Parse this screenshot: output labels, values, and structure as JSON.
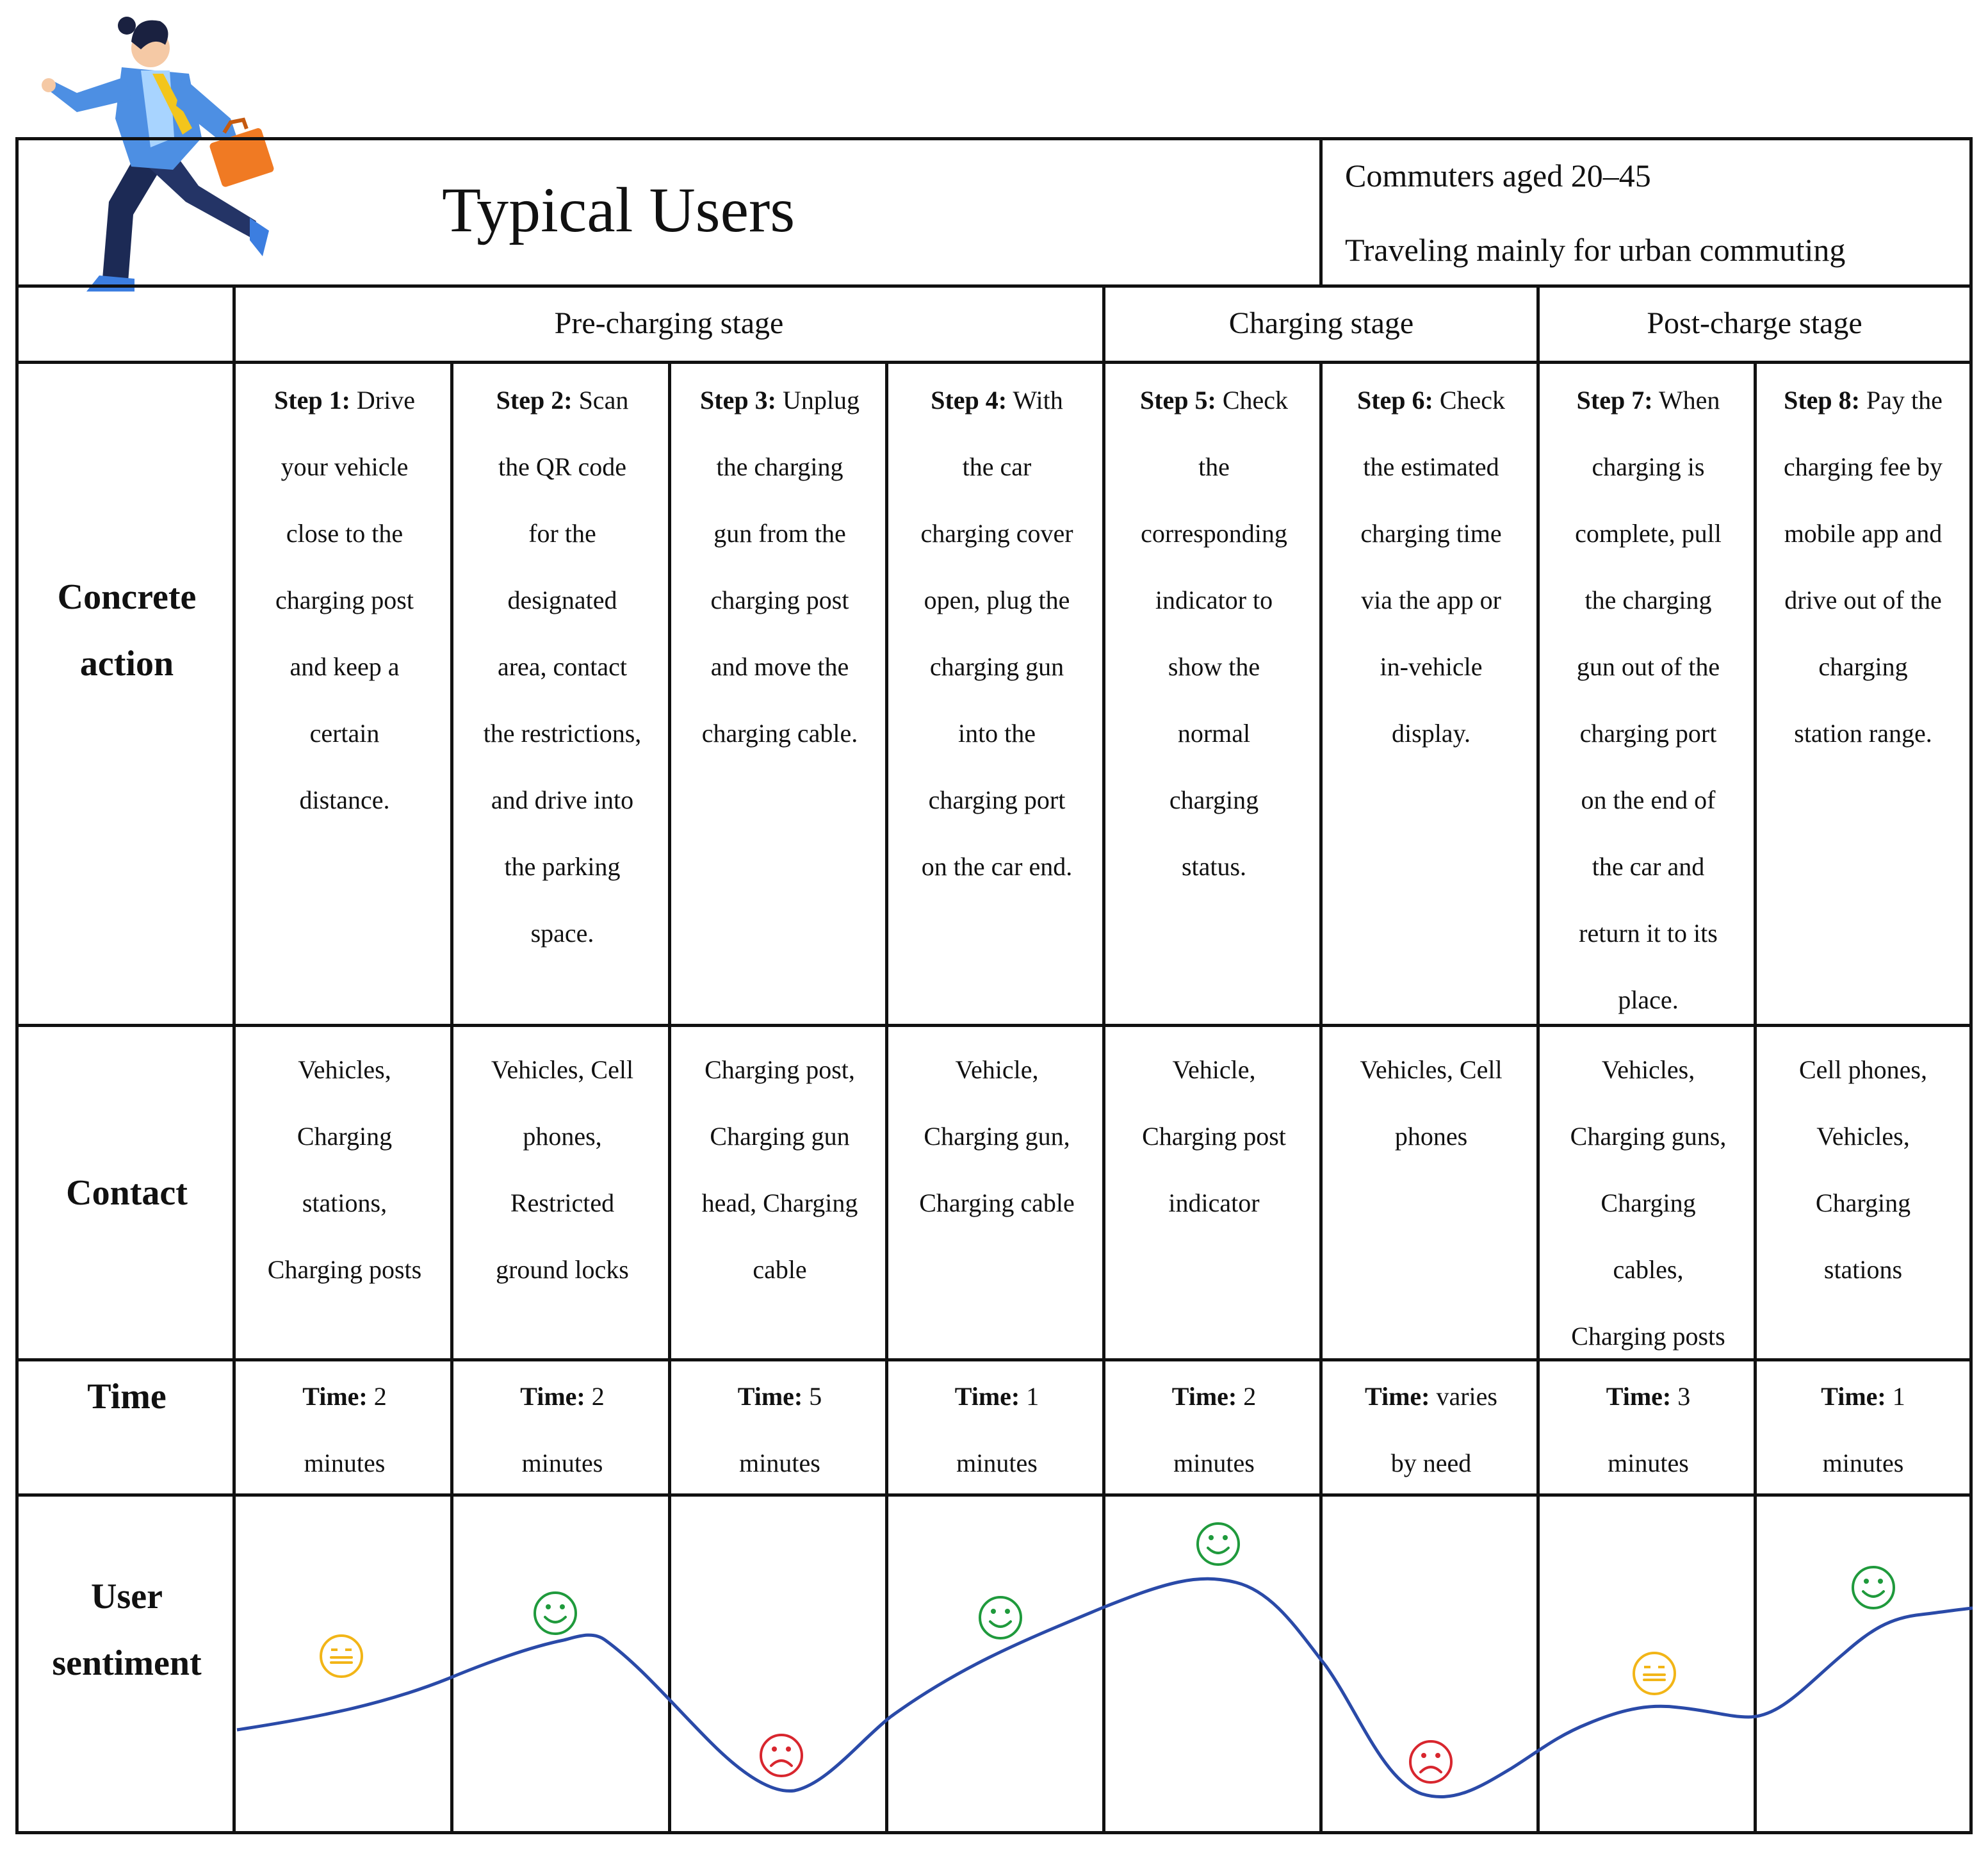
{
  "header": {
    "title": "Typical Users",
    "meta_lines": [
      "Commuters aged 20–45",
      "Traveling mainly for urban commuting"
    ]
  },
  "stages": [
    {
      "label": "Pre-charging stage"
    },
    {
      "label": "Charging stage"
    },
    {
      "label": "Post-charge stage"
    }
  ],
  "rows": {
    "action_label": [
      "Concrete",
      "action"
    ],
    "contact_label": "Contact",
    "time_label": "Time",
    "sentiment_label": [
      "User",
      "sentiment"
    ]
  },
  "steps": [
    {
      "step": "Step 1:",
      "action": [
        "Drive",
        "your vehicle",
        "close to the",
        "charging post",
        "and keep a",
        "certain",
        "distance."
      ],
      "contact": [
        "Vehicles,",
        "Charging",
        "stations,",
        "Charging posts"
      ],
      "time_key": "Time:",
      "time_val": [
        "2",
        "minutes"
      ],
      "sentiment": "neutral"
    },
    {
      "step": "Step 2:",
      "action": [
        "Scan",
        "the QR code",
        "for the",
        "designated",
        "area, contact",
        "the restrictions,",
        "and drive into",
        "the parking",
        "space."
      ],
      "contact": [
        "Vehicles, Cell",
        "phones,",
        "Restricted",
        "ground locks"
      ],
      "time_key": "Time:",
      "time_val": [
        "2",
        "minutes"
      ],
      "sentiment": "happy"
    },
    {
      "step": "Step 3:",
      "action": [
        "Unplug",
        "the charging",
        "gun from the",
        "charging post",
        "and move the",
        "charging cable."
      ],
      "contact": [
        "Charging post,",
        "Charging gun",
        "head, Charging",
        "cable"
      ],
      "time_key": "Time:",
      "time_val": [
        "5",
        "minutes"
      ],
      "sentiment": "sad"
    },
    {
      "step": "Step 4:",
      "action": [
        "With",
        "the car",
        "charging cover",
        "open, plug the",
        "charging gun",
        "into the",
        "charging port",
        "on the car end."
      ],
      "contact": [
        "Vehicle,",
        "Charging gun,",
        "Charging cable"
      ],
      "time_key": "Time:",
      "time_val": [
        "1",
        "minutes"
      ],
      "sentiment": "happy"
    },
    {
      "step": "Step 5:",
      "action": [
        "Check",
        "the",
        "corresponding",
        "indicator to",
        "show the",
        "normal",
        "charging",
        "status."
      ],
      "contact": [
        "Vehicle,",
        "Charging post",
        "indicator"
      ],
      "time_key": "Time:",
      "time_val": [
        "2",
        "minutes"
      ],
      "sentiment": "happy"
    },
    {
      "step": "Step 6:",
      "action": [
        "Check",
        "the estimated",
        "charging time",
        "via the app or",
        "in-vehicle",
        "display."
      ],
      "contact": [
        "Vehicles, Cell",
        "phones"
      ],
      "time_key": "Time:",
      "time_val": [
        "varies",
        "by need"
      ],
      "sentiment": "sad"
    },
    {
      "step": "Step 7:",
      "action": [
        "When",
        "charging is",
        "complete, pull",
        "the charging",
        "gun out of the",
        "charging port",
        "on the end of",
        "the car and",
        "return it to its",
        "place."
      ],
      "contact": [
        "Vehicles,",
        "Charging guns,",
        "Charging",
        "cables,",
        "Charging posts"
      ],
      "time_key": "Time:",
      "time_val": [
        "3",
        "minutes"
      ],
      "sentiment": "neutral"
    },
    {
      "step": "Step 8:",
      "action": [
        "Pay the",
        "charging fee by",
        "mobile app and",
        "drive out of the",
        "charging",
        "station range."
      ],
      "contact": [
        "Cell phones,",
        "Vehicles,",
        "Charging",
        "stations"
      ],
      "time_key": "Time:",
      "time_val": [
        "1",
        "minutes"
      ],
      "sentiment": "happy"
    }
  ],
  "colors": {
    "curve": "#2a4aa8",
    "happy": "#1f9a3c",
    "neutral": "#f2b517",
    "sad": "#d8262e",
    "grid": "#111111"
  },
  "icons": {
    "persona": "businessman-running-with-briefcase",
    "happy": "smiley-face-icon",
    "neutral": "neutral-face-icon",
    "sad": "sad-face-icon"
  }
}
